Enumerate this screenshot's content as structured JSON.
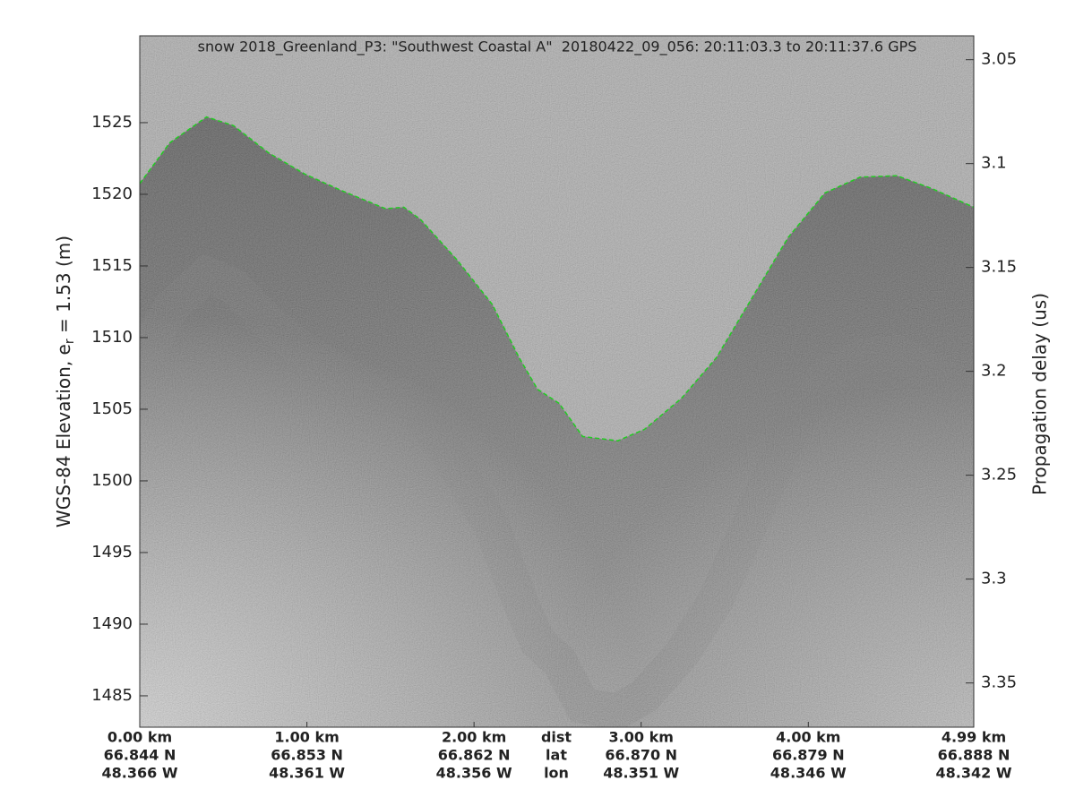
{
  "chart_data": {
    "type": "echogram",
    "title": "snow 2018_Greenland_P3: \"Southwest Coastal A\"  20180422_09_056: 20:11:03.3 to 20:11:37.6 GPS",
    "ylabel": {
      "text": "WGS-84 Elevation, e",
      "subscript": "r",
      "suffix": " = 1.53 (m)"
    },
    "y2label": "Propagation delay (us)",
    "xlim": [
      0,
      4.99
    ],
    "ylim": [
      1482.81,
      1531.06
    ],
    "y2lim": [
      3.0385,
      3.3713
    ],
    "y2_reversed": true,
    "yticks": [
      1485,
      1490,
      1495,
      1500,
      1505,
      1510,
      1515,
      1520,
      1525
    ],
    "y2ticks": [
      3.05,
      3.1,
      3.15,
      3.2,
      3.25,
      3.3,
      3.35
    ],
    "xticks": [
      {
        "value": 0,
        "label": "0.00 km"
      },
      {
        "value": 1,
        "label": "1.00 km"
      },
      {
        "value": 2,
        "label": "2.00 km"
      },
      {
        "value": 3,
        "label": "3.00 km"
      },
      {
        "value": 4,
        "label": "4.00 km"
      },
      {
        "value": 4.99,
        "label": "4.99 km"
      }
    ],
    "lat_labels": [
      "66.844 N",
      "66.853 N",
      "66.862 N",
      "66.870 N",
      "66.879 N",
      "66.888 N"
    ],
    "lon_labels": [
      "48.366 W",
      "48.361 W",
      "48.356 W",
      "48.351 W",
      "48.346 W",
      "48.342 W"
    ],
    "row_labels": [
      "dist",
      "lat",
      "lon"
    ],
    "series": [
      {
        "name": "surface",
        "color": "#22cc22",
        "x": [
          0,
          0.18,
          0.4,
          0.56,
          0.77,
          0.99,
          1.2,
          1.47,
          1.58,
          1.68,
          1.9,
          2.11,
          2.27,
          2.38,
          2.51,
          2.65,
          2.86,
          3.02,
          3.24,
          3.45,
          3.67,
          3.88,
          4.1,
          4.31,
          4.53,
          4.74,
          4.99
        ],
        "values": [
          1520.75,
          1523.6,
          1525.4,
          1524.8,
          1522.9,
          1521.4,
          1520.3,
          1519.0,
          1519.1,
          1518.25,
          1515.4,
          1512.3,
          1508.6,
          1506.4,
          1505.4,
          1503.1,
          1502.8,
          1503.6,
          1505.75,
          1508.6,
          1512.9,
          1517.0,
          1520.1,
          1521.2,
          1521.3,
          1520.4,
          1519.1
        ]
      }
    ]
  }
}
